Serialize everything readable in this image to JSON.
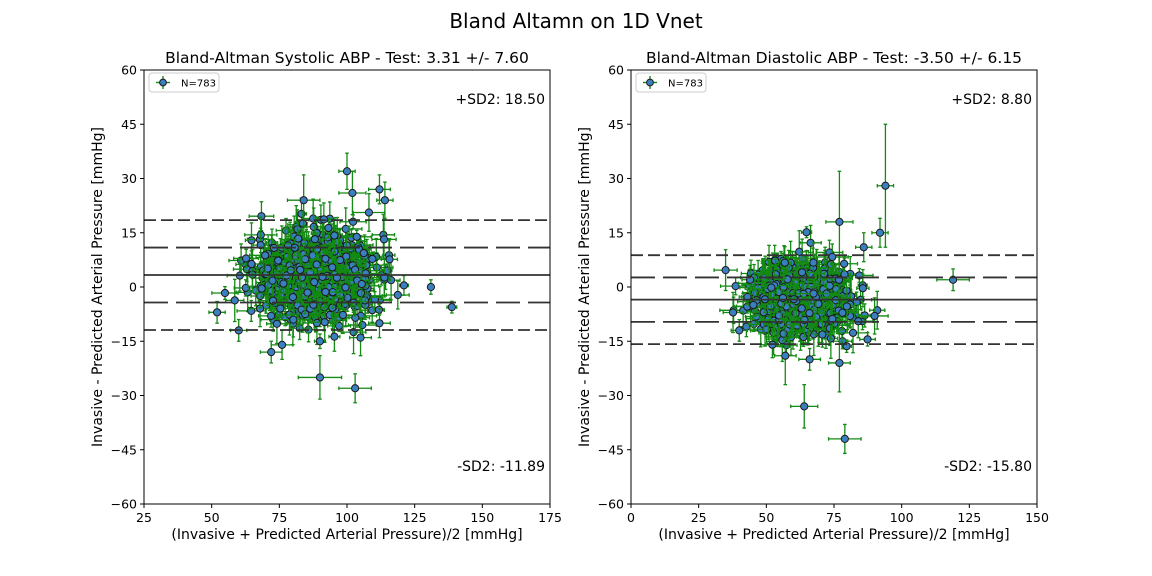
{
  "figure": {
    "suptitle": "Bland Altamn on 1D Vnet"
  },
  "chart_data": [
    {
      "type": "scatter",
      "title": "Bland-Altman Systolic ABP - Test: 3.31 +/- 7.60",
      "xlabel": "(Invasive + Predicted Arterial Pressure)/2 [mmHg]",
      "ylabel": "Invasive - Predicted Arterial Pressure [mmHg]",
      "xlim": [
        25,
        175
      ],
      "ylim": [
        -60,
        60
      ],
      "xticks": [
        25,
        50,
        75,
        100,
        125,
        150,
        175
      ],
      "yticks": [
        -60,
        -45,
        -30,
        -15,
        0,
        15,
        30,
        45,
        60
      ],
      "grid": false,
      "legend": {
        "label": "N=783",
        "position": "top-left"
      },
      "annotations": {
        "upper": "+SD2: 18.50",
        "lower": "-SD2: -11.89"
      },
      "hlines": [
        {
          "y": 18.5,
          "style": "dashed"
        },
        {
          "y": 10.91,
          "style": "longdash"
        },
        {
          "y": 3.31,
          "style": "solid"
        },
        {
          "y": -4.29,
          "style": "longdash"
        },
        {
          "y": -11.89,
          "style": "dashed"
        }
      ],
      "cluster": {
        "n": 783,
        "x_mean": 88,
        "x_sd": 11,
        "y_mean": 3.31,
        "y_sd": 5.6,
        "seed": 11
      },
      "outliers": [
        {
          "x": 131,
          "y": 0,
          "xerr": 0,
          "yerr": 2
        },
        {
          "x": 100,
          "y": 32,
          "xerr": 3,
          "yerr": 5
        },
        {
          "x": 84,
          "y": 24,
          "xerr": 6,
          "yerr": 7
        },
        {
          "x": 102,
          "y": 26,
          "xerr": 5,
          "yerr": 6
        },
        {
          "x": 112,
          "y": 27,
          "xerr": 4,
          "yerr": 4
        },
        {
          "x": 114,
          "y": 24,
          "xerr": 3,
          "yerr": 5
        },
        {
          "x": 90,
          "y": -25,
          "xerr": 8,
          "yerr": 6
        },
        {
          "x": 103,
          "y": -28,
          "xerr": 6,
          "yerr": 4
        },
        {
          "x": 90,
          "y": -15,
          "xerr": 2,
          "yerr": 2
        },
        {
          "x": 72,
          "y": -18,
          "xerr": 4,
          "yerr": 3
        },
        {
          "x": 60,
          "y": -12,
          "xerr": 3,
          "yerr": 3
        },
        {
          "x": 52,
          "y": -7,
          "xerr": 3,
          "yerr": 3
        },
        {
          "x": 105,
          "y": -14,
          "xerr": 4,
          "yerr": 5
        },
        {
          "x": 112,
          "y": -10,
          "xerr": 4,
          "yerr": 4
        },
        {
          "x": 76,
          "y": -16,
          "xerr": 4,
          "yerr": 4
        }
      ]
    },
    {
      "type": "scatter",
      "title": "Bland-Altman Diastolic ABP - Test: -3.50 +/- 6.15",
      "xlabel": "(Invasive + Predicted Arterial Pressure)/2 [mmHg]",
      "ylabel": "Invasive - Predicted Arterial Pressure [mmHg]",
      "xlim": [
        0,
        150
      ],
      "ylim": [
        -60,
        60
      ],
      "xticks": [
        0,
        25,
        50,
        75,
        100,
        125,
        150
      ],
      "yticks": [
        -60,
        -45,
        -30,
        -15,
        0,
        15,
        30,
        45,
        60
      ],
      "grid": false,
      "legend": {
        "label": "N=783",
        "position": "top-left"
      },
      "annotations": {
        "upper": "+SD2: 8.80",
        "lower": "-SD2: -15.80"
      },
      "hlines": [
        {
          "y": 8.8,
          "style": "dashed"
        },
        {
          "y": 2.65,
          "style": "longdash"
        },
        {
          "y": -3.5,
          "style": "solid"
        },
        {
          "y": -9.65,
          "style": "longdash"
        },
        {
          "y": -15.8,
          "style": "dashed"
        }
      ],
      "cluster": {
        "n": 783,
        "x_mean": 62,
        "x_sd": 9,
        "y_mean": -3.5,
        "y_sd": 4.6,
        "seed": 29
      },
      "outliers": [
        {
          "x": 94,
          "y": 28,
          "xerr": 3,
          "yerr": 17
        },
        {
          "x": 77,
          "y": 18,
          "xerr": 5,
          "yerr": 14
        },
        {
          "x": 119,
          "y": 2,
          "xerr": 6,
          "yerr": 3
        },
        {
          "x": 64,
          "y": -33,
          "xerr": 5,
          "yerr": 6
        },
        {
          "x": 79,
          "y": -42,
          "xerr": 6,
          "yerr": 4
        },
        {
          "x": 77,
          "y": -21,
          "xerr": 4,
          "yerr": 8
        },
        {
          "x": 92,
          "y": 15,
          "xerr": 3,
          "yerr": 4
        },
        {
          "x": 86,
          "y": 11,
          "xerr": 3,
          "yerr": 4
        },
        {
          "x": 57,
          "y": -19,
          "xerr": 4,
          "yerr": 8
        },
        {
          "x": 66,
          "y": -20,
          "xerr": 4,
          "yerr": 3
        },
        {
          "x": 44,
          "y": 2,
          "xerr": 3,
          "yerr": 4
        },
        {
          "x": 40,
          "y": -12,
          "xerr": 3,
          "yerr": 3
        },
        {
          "x": 90,
          "y": -8,
          "xerr": 5,
          "yerr": 5
        }
      ]
    }
  ],
  "colors": {
    "marker_fill": "#3a7fc0",
    "marker_edge": "#1a1a1a",
    "errorbar": "#138a13",
    "lines": "#333333"
  }
}
